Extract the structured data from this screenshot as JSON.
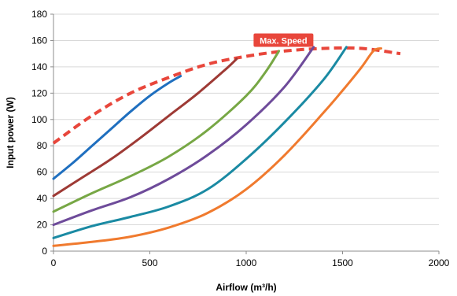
{
  "chart_data": {
    "type": "line",
    "xlabel": "Airflow (m³/h)",
    "ylabel": "Input power (W)",
    "xlim": [
      0,
      2000
    ],
    "ylim": [
      0,
      180
    ],
    "xticks": [
      0,
      500,
      1000,
      1500,
      2000
    ],
    "yticks": [
      0,
      20,
      40,
      60,
      80,
      100,
      120,
      140,
      160,
      180
    ],
    "grid": "horizontal",
    "annotation": {
      "text": "Max. Speed",
      "x": 1520,
      "y": 160,
      "color": "#e8463b"
    },
    "series": [
      {
        "color": "#e8463b",
        "dashed": true,
        "x": [
          0,
          200,
          400,
          600,
          800,
          1000,
          1200,
          1400,
          1600,
          1800
        ],
        "y": [
          82,
          103,
          120,
          132,
          142,
          148,
          152,
          154,
          154,
          150
        ]
      },
      {
        "color": "#1f6fbf",
        "x": [
          0,
          100,
          200,
          300,
          400,
          500,
          600,
          660
        ],
        "y": [
          55,
          67,
          80,
          93,
          106,
          118,
          128,
          133
        ]
      },
      {
        "color": "#9e3a35",
        "x": [
          0,
          150,
          300,
          450,
          600,
          750,
          900,
          950
        ],
        "y": [
          42,
          56,
          70,
          86,
          103,
          120,
          139,
          146
        ]
      },
      {
        "color": "#77a745",
        "x": [
          0,
          200,
          400,
          600,
          800,
          1000,
          1100,
          1170
        ],
        "y": [
          30,
          44,
          57,
          72,
          92,
          118,
          136,
          152
        ]
      },
      {
        "color": "#6e4b9a",
        "x": [
          0,
          200,
          400,
          600,
          800,
          1000,
          1200,
          1350
        ],
        "y": [
          20,
          31,
          41,
          55,
          73,
          96,
          125,
          155
        ]
      },
      {
        "color": "#1a8aa3",
        "x": [
          0,
          200,
          400,
          600,
          800,
          1000,
          1200,
          1400,
          1520
        ],
        "y": [
          10,
          19,
          26,
          34,
          47,
          70,
          98,
          130,
          155
        ]
      },
      {
        "color": "#f07a2e",
        "x": [
          0,
          200,
          400,
          600,
          800,
          1000,
          1200,
          1400,
          1500,
          1600,
          1660,
          1700
        ],
        "y": [
          4,
          7,
          11,
          18,
          29,
          47,
          73,
          105,
          122,
          140,
          152,
          154
        ]
      }
    ]
  }
}
